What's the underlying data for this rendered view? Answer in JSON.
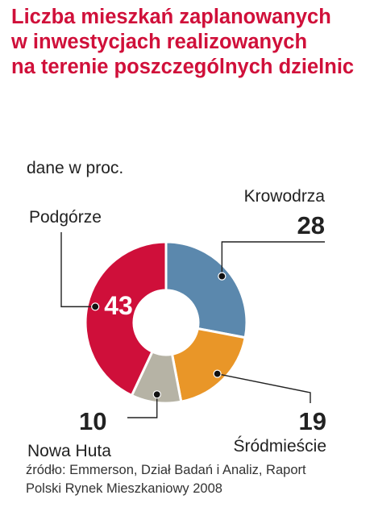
{
  "title_lines": [
    "Liczba mieszkań zaplanowanych",
    "w inwestycjach realizowanych",
    "na terenie poszczególnych dzielnic"
  ],
  "subtitle": "dane w proc.",
  "source_lines": [
    "źródło: Emmerson, Dział Badań i Analiz, Raport",
    "Polski Rynek Mieszkaniowy 2008"
  ],
  "colors": {
    "title": "#d0103a",
    "Krowodrza": "#5b88ad",
    "Śródmieście": "#e99628",
    "Nowa Huta": "#b6b3a5",
    "Podgórze": "#cf0f3a"
  },
  "chart_data": {
    "type": "pie",
    "donut": true,
    "unit": "%",
    "categories": [
      "Krowodrza",
      "Śródmieście",
      "Nowa Huta",
      "Podgórze"
    ],
    "values": [
      28,
      19,
      10,
      43
    ],
    "labels": {
      "Krowodrza": {
        "name": "Krowodrza",
        "value": "28"
      },
      "Śródmieście": {
        "name": "Śródmieście",
        "value": "19"
      },
      "Nowa Huta": {
        "name": "Nowa Huta",
        "value": "10"
      },
      "Podgórze": {
        "name": "Podgórze",
        "value": "43"
      }
    }
  }
}
